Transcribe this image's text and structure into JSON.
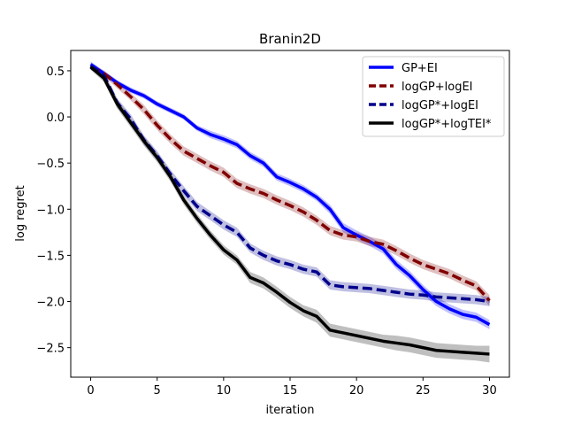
{
  "chart_data": {
    "type": "line",
    "title": "Branin2D",
    "xlabel": "iteration",
    "ylabel": "log regret",
    "xlim": [
      -1.5,
      31.5
    ],
    "ylim": [
      -2.82,
      0.72
    ],
    "xticks": [
      0,
      5,
      10,
      15,
      20,
      25,
      30
    ],
    "yticks": [
      0.5,
      0.0,
      -0.5,
      -1.0,
      -1.5,
      -2.0,
      -2.5
    ],
    "xtick_labels": [
      "0",
      "5",
      "10",
      "15",
      "20",
      "25",
      "30"
    ],
    "ytick_labels": [
      "0.5",
      "0.0",
      "−0.5",
      "−1.0",
      "−1.5",
      "−2.0",
      "−2.5"
    ],
    "legend_position": "top-right",
    "grid": false,
    "x": [
      0,
      1,
      2,
      3,
      4,
      5,
      6,
      7,
      8,
      9,
      10,
      11,
      12,
      13,
      14,
      15,
      16,
      17,
      18,
      19,
      20,
      21,
      22,
      23,
      24,
      25,
      26,
      27,
      28,
      29,
      30
    ],
    "series": [
      {
        "name": "GP+EI",
        "color": "#0000ff",
        "dash": "solid",
        "values": [
          0.57,
          0.47,
          0.37,
          0.29,
          0.23,
          0.14,
          0.07,
          0.0,
          -0.12,
          -0.19,
          -0.24,
          -0.3,
          -0.42,
          -0.5,
          -0.65,
          -0.71,
          -0.78,
          -0.87,
          -1.0,
          -1.2,
          -1.28,
          -1.35,
          -1.43,
          -1.6,
          -1.72,
          -1.87,
          -2.0,
          -2.08,
          -2.14,
          -2.17,
          -2.25
        ],
        "band": [
          0.03,
          0.03,
          0.03,
          0.03,
          0.03,
          0.03,
          0.03,
          0.03,
          0.03,
          0.04,
          0.04,
          0.04,
          0.04,
          0.04,
          0.04,
          0.04,
          0.04,
          0.04,
          0.05,
          0.05,
          0.05,
          0.05,
          0.05,
          0.05,
          0.05,
          0.05,
          0.05,
          0.05,
          0.05,
          0.05,
          0.05
        ]
      },
      {
        "name": "logGP+logEI",
        "color": "#800000",
        "dash": "dashed",
        "values": [
          0.54,
          0.47,
          0.35,
          0.22,
          0.08,
          -0.09,
          -0.24,
          -0.37,
          -0.45,
          -0.53,
          -0.6,
          -0.72,
          -0.78,
          -0.83,
          -0.9,
          -0.96,
          -1.03,
          -1.12,
          -1.23,
          -1.28,
          -1.3,
          -1.35,
          -1.38,
          -1.45,
          -1.53,
          -1.6,
          -1.65,
          -1.7,
          -1.77,
          -1.83,
          -1.99
        ],
        "band": [
          0.03,
          0.03,
          0.04,
          0.04,
          0.05,
          0.05,
          0.05,
          0.05,
          0.05,
          0.05,
          0.05,
          0.05,
          0.05,
          0.05,
          0.05,
          0.05,
          0.05,
          0.05,
          0.05,
          0.05,
          0.05,
          0.05,
          0.05,
          0.05,
          0.05,
          0.05,
          0.05,
          0.05,
          0.05,
          0.05,
          0.06
        ]
      },
      {
        "name": "logGP*+logEI",
        "color": "#00008b",
        "dash": "dashed",
        "values": [
          0.55,
          0.45,
          0.15,
          -0.02,
          -0.25,
          -0.42,
          -0.62,
          -0.8,
          -0.97,
          -1.07,
          -1.17,
          -1.25,
          -1.42,
          -1.5,
          -1.56,
          -1.6,
          -1.65,
          -1.68,
          -1.82,
          -1.84,
          -1.85,
          -1.86,
          -1.88,
          -1.9,
          -1.92,
          -1.93,
          -1.95,
          -1.96,
          -1.97,
          -1.98,
          -2.0
        ],
        "band": [
          0.03,
          0.04,
          0.05,
          0.05,
          0.05,
          0.05,
          0.05,
          0.05,
          0.05,
          0.05,
          0.05,
          0.05,
          0.05,
          0.05,
          0.05,
          0.05,
          0.05,
          0.05,
          0.05,
          0.05,
          0.05,
          0.05,
          0.05,
          0.05,
          0.05,
          0.05,
          0.05,
          0.05,
          0.05,
          0.05,
          0.05
        ]
      },
      {
        "name": "logGP*+logTEI*",
        "color": "#000000",
        "dash": "solid",
        "values": [
          0.54,
          0.42,
          0.14,
          -0.06,
          -0.26,
          -0.44,
          -0.65,
          -0.9,
          -1.1,
          -1.28,
          -1.44,
          -1.55,
          -1.74,
          -1.8,
          -1.9,
          -2.01,
          -2.1,
          -2.16,
          -2.31,
          -2.34,
          -2.37,
          -2.4,
          -2.43,
          -2.45,
          -2.47,
          -2.5,
          -2.53,
          -2.54,
          -2.55,
          -2.56,
          -2.57
        ],
        "band": [
          0.03,
          0.04,
          0.05,
          0.05,
          0.05,
          0.05,
          0.05,
          0.05,
          0.05,
          0.05,
          0.05,
          0.05,
          0.06,
          0.06,
          0.06,
          0.06,
          0.06,
          0.07,
          0.07,
          0.07,
          0.07,
          0.07,
          0.07,
          0.08,
          0.08,
          0.08,
          0.08,
          0.08,
          0.08,
          0.08,
          0.09
        ]
      }
    ]
  }
}
